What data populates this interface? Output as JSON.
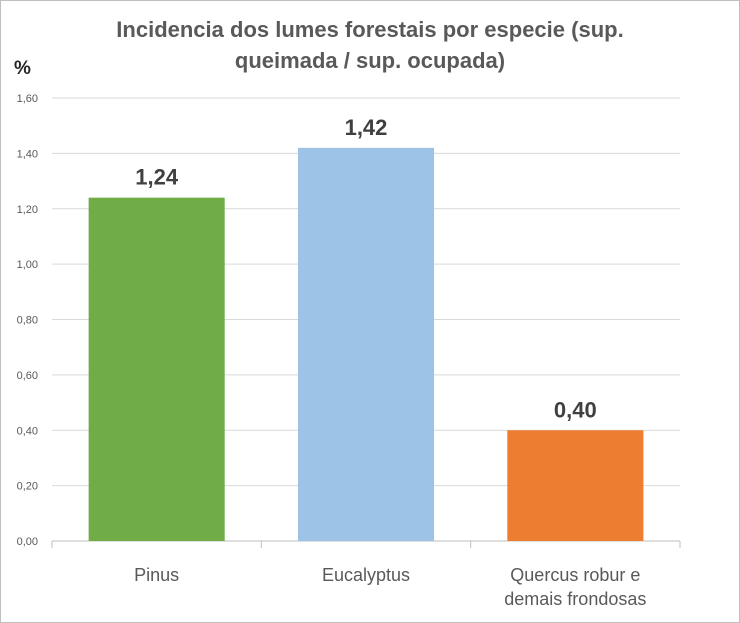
{
  "chart_data": {
    "type": "bar",
    "title_lines": [
      "Incidencia dos lumes forestais por especie (sup.",
      "queimada / sup. ocupada)"
    ],
    "ylabel": "%",
    "xlabel": "",
    "categories": [
      [
        "Pinus"
      ],
      [
        "Eucalyptus"
      ],
      [
        "Quercus robur e",
        "demais frondosas"
      ]
    ],
    "values": [
      1.24,
      1.42,
      0.4
    ],
    "data_labels": [
      "1,24",
      "1,42",
      "0,40"
    ],
    "bar_colors": [
      "#70ad47",
      "#9dc3e6",
      "#ed7d31"
    ],
    "ylim": [
      0,
      1.6
    ],
    "yticks": [
      0,
      0.2,
      0.4,
      0.6,
      0.8,
      1.0,
      1.2,
      1.4,
      1.6
    ],
    "ytick_labels": [
      "0,00",
      "0,20",
      "0,40",
      "0,60",
      "0,80",
      "1,00",
      "1,20",
      "1,40",
      "1,60"
    ],
    "grid": true,
    "legend": "none"
  }
}
